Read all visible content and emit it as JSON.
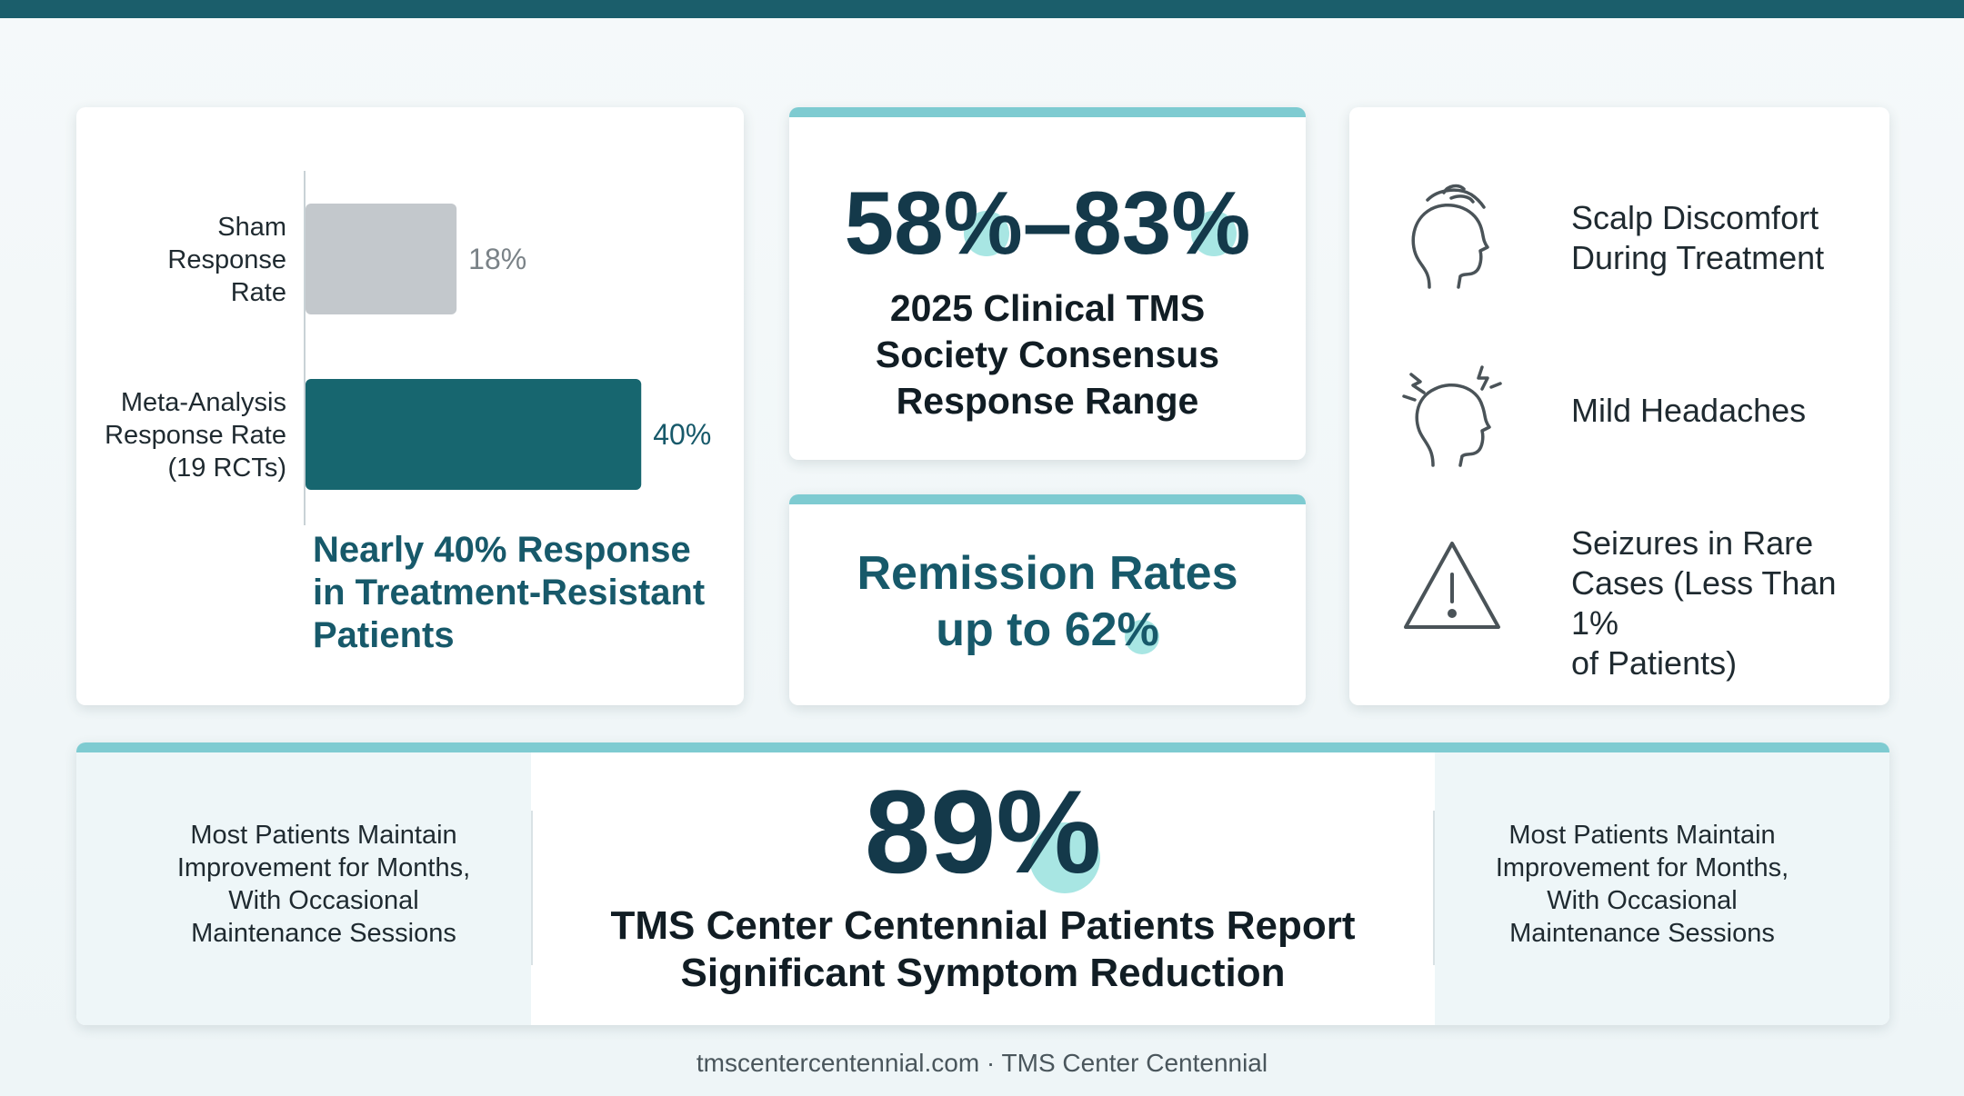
{
  "chart_data": {
    "type": "bar",
    "orientation": "horizontal",
    "categories": [
      "Sham\nResponse\nRate",
      "Meta-Analysis\nResponse Rate\n(19 RCTs)"
    ],
    "values": [
      18,
      40
    ],
    "value_labels": [
      "18%",
      "40%"
    ],
    "colors": [
      "#c3c8cc",
      "#17666f"
    ],
    "xlim": [
      0,
      52
    ],
    "headline": "Nearly 40% Response in Treatment-Resistant Patients"
  },
  "response_range": {
    "value_a": "58",
    "value_b": "83",
    "dash": "–",
    "percent": "%",
    "caption": "2025 Clinical TMS\nSociety Consensus\nResponse Range"
  },
  "remission": {
    "line1": "Remission Rates",
    "line2_prefix": "up to 62",
    "percent": "%"
  },
  "side_effects": {
    "items": [
      {
        "icon": "head-touch-icon",
        "text": "Scalp Discomfort\nDuring Treatment"
      },
      {
        "icon": "head-headache-icon",
        "text": "Mild Headaches"
      },
      {
        "icon": "warning-triangle-icon",
        "text": "Seizures in Rare\nCases (Less Than 1%\nof Patients)"
      }
    ]
  },
  "symptom_reduction": {
    "value": "89",
    "percent": "%",
    "caption": "TMS Center Centennial Patients Report\nSignificant Symptom Reduction",
    "left_note": "Most Patients Maintain\nImprovement for Months,\nWith Occasional\nMaintenance Sessions",
    "right_note": "Most Patients Maintain\nImprovement for Months,\nWith Occasional\nMaintenance Sessions"
  },
  "footer": "tmscentercentennial.com · TMS Center Centennial",
  "colors": {
    "accent": "#7ecbd1",
    "dark_teal": "#17596a",
    "highlight": "#a8e6e3",
    "top_bar": "#1b5e6b"
  }
}
